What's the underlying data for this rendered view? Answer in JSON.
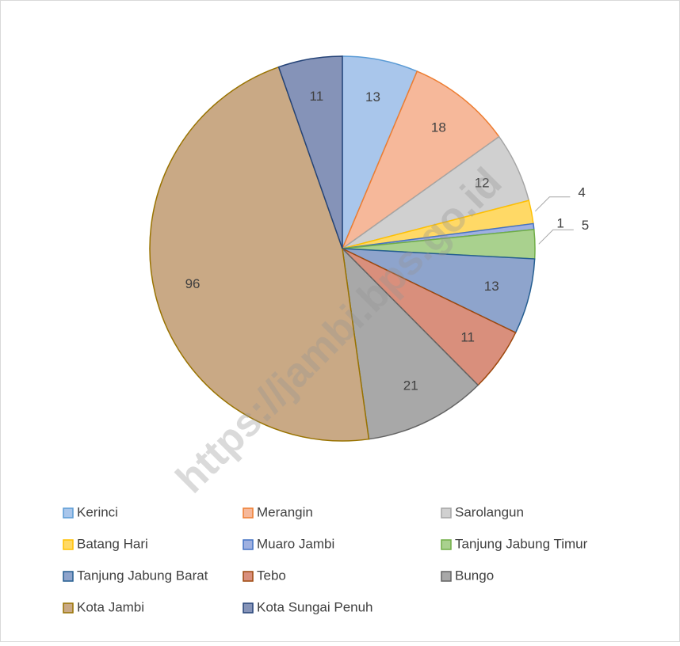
{
  "chart_data": {
    "type": "pie",
    "categories": [
      "Kerinci",
      "Merangin",
      "Sarolangun",
      "Batang Hari",
      "Muaro Jambi",
      "Tanjung Jabung Timur",
      "Tanjung Jabung Barat",
      "Tebo",
      "Bungo",
      "Kota Jambi",
      "Kota Sungai Penuh"
    ],
    "values": [
      13,
      18,
      12,
      4,
      1,
      5,
      13,
      11,
      21,
      96,
      11
    ],
    "colors": [
      "#a9c6eb",
      "#f6b89a",
      "#d0d0d0",
      "#ffd966",
      "#9fb0e0",
      "#a9d18e",
      "#8ea4cc",
      "#d98f7c",
      "#a8a8a8",
      "#c9a985",
      "#8593b8"
    ],
    "borders": [
      "#5b9bd5",
      "#ed7d31",
      "#a5a5a5",
      "#ffc000",
      "#4472c4",
      "#70ad47",
      "#255e91",
      "#9e480e",
      "#636363",
      "#997300",
      "#264478"
    ],
    "legend": "bottom",
    "watermark": "https://jambi.bps.go.id"
  }
}
